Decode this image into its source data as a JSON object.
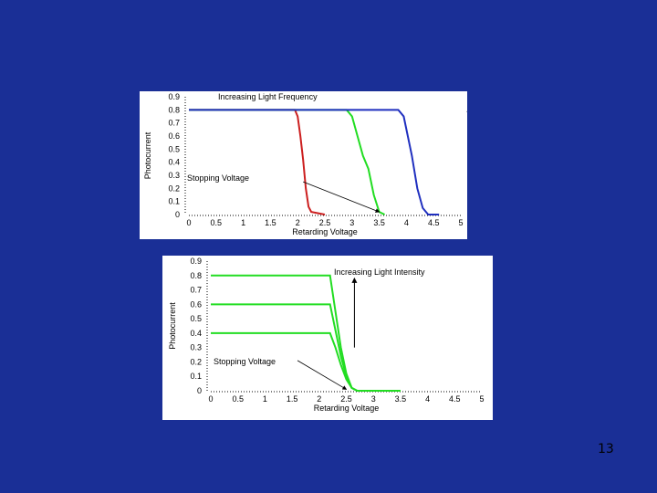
{
  "slide": {
    "page_number": "13"
  },
  "chart_data": [
    {
      "type": "line",
      "title": "Increasing Light Frequency",
      "xlabel": "Retarding Voltage",
      "ylabel": "Photocurrent",
      "xlim": [
        0,
        5
      ],
      "ylim": [
        0,
        0.9
      ],
      "x_ticks": [
        0,
        0.5,
        1,
        1.5,
        2,
        2.5,
        3,
        3.5,
        4,
        4.5,
        5
      ],
      "x_tick_labels": [
        "0",
        "0.5",
        "1",
        "1.5",
        "2",
        "2.5",
        "3",
        "3.5",
        "4",
        "4.5",
        "5"
      ],
      "y_ticks": [
        0,
        0.1,
        0.2,
        0.3,
        0.4,
        0.5,
        0.6,
        0.7,
        0.8,
        0.9
      ],
      "y_tick_labels": [
        "0",
        "0.1",
        "0.2",
        "0.3",
        "0.4",
        "0.5",
        "0.6",
        "0.7",
        "0.8",
        "0.9"
      ],
      "annotation_arrow_label": "→",
      "stopping_label": "Stopping Voltage",
      "series": [
        {
          "color": "#cc1f1f",
          "x": [
            0,
            1.95,
            2.0,
            2.05,
            2.1,
            2.15,
            2.2,
            2.25,
            2.5
          ],
          "y": [
            0.8,
            0.8,
            0.75,
            0.6,
            0.42,
            0.2,
            0.06,
            0.02,
            0.0
          ]
        },
        {
          "color": "#22dd22",
          "x": [
            0,
            2.9,
            3.0,
            3.1,
            3.2,
            3.3,
            3.4,
            3.5,
            3.6
          ],
          "y": [
            0.8,
            0.8,
            0.75,
            0.6,
            0.45,
            0.35,
            0.15,
            0.02,
            0.0
          ]
        },
        {
          "color": "#1f2fbf",
          "x": [
            0,
            3.85,
            3.95,
            4.05,
            4.1,
            4.2,
            4.3,
            4.4,
            4.6
          ],
          "y": [
            0.8,
            0.8,
            0.75,
            0.55,
            0.45,
            0.2,
            0.05,
            0.0,
            0.0
          ]
        }
      ],
      "annotation_arrow": {
        "from": [
          2.1,
          0.25
        ],
        "to": [
          3.5,
          0.02
        ]
      }
    },
    {
      "type": "line",
      "title": "Increasing Light Intensity",
      "xlabel": "Retarding Voltage",
      "ylabel": "Photocurrent",
      "xlim": [
        0,
        5
      ],
      "ylim": [
        0,
        0.9
      ],
      "x_ticks": [
        0,
        0.5,
        1,
        1.5,
        2,
        2.5,
        3,
        3.5,
        4,
        4.5,
        5
      ],
      "x_tick_labels": [
        "0",
        "0.5",
        "1",
        "1.5",
        "2",
        "2.5",
        "3",
        "3.5",
        "4",
        "4.5",
        "5"
      ],
      "y_ticks": [
        0,
        0.1,
        0.2,
        0.3,
        0.4,
        0.5,
        0.6,
        0.7,
        0.8,
        0.9
      ],
      "y_tick_labels": [
        "0",
        "0.1",
        "0.2",
        "0.3",
        "0.4",
        "0.5",
        "0.6",
        "0.7",
        "0.8",
        "0.9"
      ],
      "stopping_label": "Stopping Voltage",
      "series": [
        {
          "color": "#22dd22",
          "x": [
            0,
            2.2,
            2.3,
            2.4,
            2.5,
            2.6,
            2.7,
            3.5
          ],
          "y": [
            0.8,
            0.8,
            0.55,
            0.3,
            0.12,
            0.02,
            0.0,
            0.0
          ]
        },
        {
          "color": "#22dd22",
          "x": [
            0,
            2.2,
            2.3,
            2.4,
            2.5,
            2.6,
            2.7,
            3.5
          ],
          "y": [
            0.6,
            0.6,
            0.42,
            0.24,
            0.1,
            0.02,
            0.0,
            0.0
          ]
        },
        {
          "color": "#22dd22",
          "x": [
            0,
            2.2,
            2.3,
            2.4,
            2.5,
            2.6,
            2.7,
            3.5
          ],
          "y": [
            0.4,
            0.4,
            0.3,
            0.18,
            0.08,
            0.02,
            0.0,
            0.0
          ]
        }
      ],
      "intensity_arrow": {
        "x": 2.65,
        "from_y": 0.3,
        "to_y": 0.78
      },
      "annotation_arrow": {
        "from": [
          1.6,
          0.21
        ],
        "to": [
          2.5,
          0.01
        ]
      }
    }
  ]
}
